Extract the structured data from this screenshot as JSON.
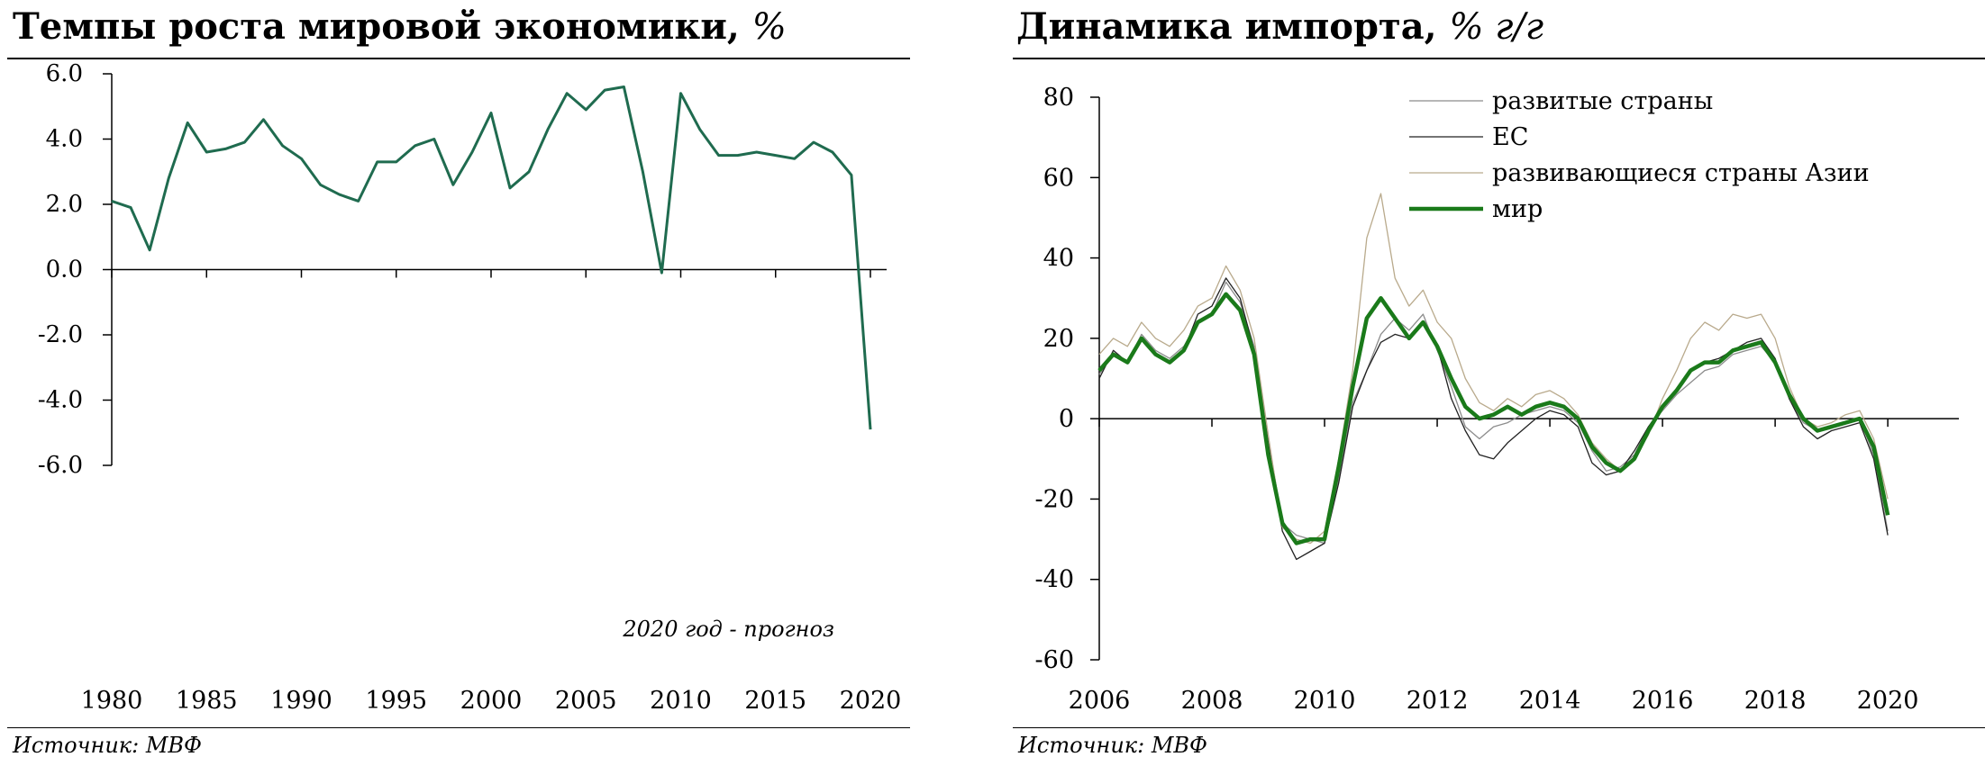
{
  "left": {
    "title": "Темпы роста мировой экономики,",
    "title_unit": "%",
    "source": "Источник: МВФ",
    "chart_data": {
      "type": "line",
      "title": "Темпы роста мировой экономики, %",
      "annotation": "2020 год - прогноз",
      "xlabel": "",
      "ylabel": "",
      "xlim": [
        1980,
        2020
      ],
      "ylim": [
        -6,
        6
      ],
      "x_ticks": [
        1980,
        1985,
        1990,
        1995,
        2000,
        2005,
        2010,
        2015,
        2020
      ],
      "y_ticks": [
        6,
        4,
        2,
        0,
        -2,
        -4,
        -6
      ],
      "y_tick_labels": [
        "6.0",
        "4.0",
        "2.0",
        "0.0",
        "-2.0",
        "-4.0",
        "-6.0"
      ],
      "grid": false,
      "color": "#1f6b4f",
      "series": [
        {
          "x": [
            1980,
            1981,
            1982,
            1983,
            1984,
            1985,
            1986,
            1987,
            1988,
            1989,
            1990,
            1991,
            1992,
            1993,
            1994,
            1995,
            1996,
            1997,
            1998,
            1999,
            2000,
            2001,
            2002,
            2003,
            2004,
            2005,
            2006,
            2007,
            2008,
            2009,
            2010,
            2011,
            2012,
            2013,
            2014,
            2015,
            2016,
            2017,
            2018,
            2019,
            2020
          ],
          "values": [
            2.1,
            1.9,
            0.6,
            2.8,
            4.5,
            3.6,
            3.7,
            3.9,
            4.6,
            3.8,
            3.4,
            2.6,
            2.3,
            2.1,
            3.3,
            3.3,
            3.8,
            4.0,
            2.6,
            3.6,
            4.8,
            2.5,
            3.0,
            4.3,
            5.4,
            4.9,
            5.5,
            5.6,
            3.0,
            -0.1,
            5.4,
            4.3,
            3.5,
            3.5,
            3.6,
            3.5,
            3.4,
            3.9,
            3.6,
            2.9,
            -4.9
          ]
        }
      ]
    }
  },
  "right": {
    "title": "Динамика импорта,",
    "title_unit": "% г/г",
    "source": "Источник: МВФ",
    "chart_data": {
      "type": "line",
      "title": "Динамика импорта, % г/г",
      "xlabel": "",
      "ylabel": "",
      "xlim": [
        2006,
        2020.75
      ],
      "ylim": [
        -60,
        80
      ],
      "x_ticks": [
        2006,
        2008,
        2010,
        2012,
        2014,
        2016,
        2018,
        2020
      ],
      "y_ticks": [
        80,
        60,
        40,
        20,
        0,
        -20,
        -40,
        -60
      ],
      "grid": false,
      "legend_position": "top-right",
      "x_start": 2006,
      "x_step": 0.25,
      "series": [
        {
          "name": "развитые страны",
          "color": "#8c8c8c",
          "width": 1.3,
          "values": [
            11,
            16,
            14,
            21,
            17,
            15,
            18,
            24,
            26,
            34,
            29,
            18,
            -5,
            -26,
            -29,
            -30,
            -31,
            -15,
            4,
            12,
            21,
            25,
            22,
            26,
            17,
            8,
            -2,
            -5,
            -2,
            -1,
            1,
            2,
            3,
            2,
            -1,
            -8,
            -13,
            -12,
            -9,
            -2,
            2,
            6,
            9,
            12,
            13,
            16,
            17,
            18,
            14,
            5,
            -1,
            -3,
            -2,
            -1,
            0,
            -9,
            -28
          ]
        },
        {
          "name": "ЕС",
          "color": "#222222",
          "width": 1.3,
          "values": [
            10,
            17,
            14,
            20,
            16,
            14,
            17,
            26,
            28,
            35,
            30,
            17,
            -6,
            -28,
            -35,
            -33,
            -31,
            -16,
            3,
            12,
            19,
            21,
            20,
            24,
            18,
            5,
            -3,
            -9,
            -10,
            -6,
            -3,
            0,
            2,
            1,
            -2,
            -11,
            -14,
            -13,
            -8,
            -2,
            3,
            7,
            12,
            14,
            15,
            17,
            19,
            20,
            15,
            5,
            -2,
            -5,
            -3,
            -2,
            -1,
            -10,
            -29
          ]
        },
        {
          "name": "развивающиеся страны Азии",
          "color": "#b9aa8c",
          "width": 1.3,
          "values": [
            16,
            20,
            18,
            24,
            20,
            18,
            22,
            28,
            30,
            38,
            32,
            20,
            -4,
            -27,
            -30,
            -31,
            -28,
            -10,
            12,
            45,
            56,
            35,
            28,
            32,
            24,
            20,
            10,
            4,
            2,
            5,
            3,
            6,
            7,
            5,
            1,
            -6,
            -10,
            -13,
            -10,
            -4,
            5,
            12,
            20,
            24,
            22,
            26,
            25,
            26,
            20,
            8,
            0,
            -2,
            -1,
            1,
            2,
            -5,
            -20
          ]
        },
        {
          "name": "мир",
          "color": "#1a7a1a",
          "width": 4.5,
          "values": [
            12,
            16,
            14,
            20,
            16,
            14,
            17,
            24,
            26,
            31,
            27,
            16,
            -9,
            -26,
            -31,
            -30,
            -30,
            -12,
            8,
            25,
            30,
            25,
            20,
            24,
            18,
            10,
            3,
            0,
            1,
            3,
            1,
            3,
            4,
            3,
            0,
            -7,
            -11,
            -13,
            -10,
            -3,
            3,
            7,
            12,
            14,
            14,
            17,
            18,
            19,
            14,
            6,
            0,
            -3,
            -2,
            -1,
            0,
            -7,
            -24
          ]
        }
      ]
    }
  }
}
